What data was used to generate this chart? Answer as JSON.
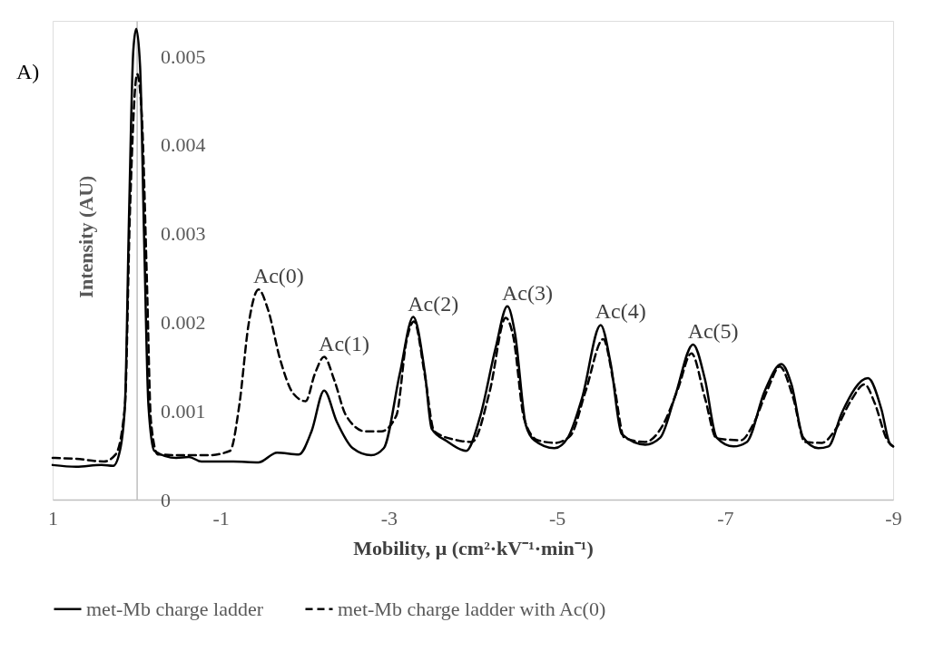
{
  "chart_data": {
    "type": "line",
    "xlabel": "Mobility, μ (cm²·kV⁻¹·min⁻¹)",
    "ylabel": "Intensity (AU)",
    "xlim": [
      1,
      -9
    ],
    "xticks": [
      1,
      -1,
      -3,
      -5,
      -7,
      -9
    ],
    "ylim": [
      0,
      0.0054
    ],
    "yticks": [
      0,
      0.001,
      0.002,
      0.003,
      0.004,
      0.005
    ],
    "grid": false,
    "legend": "bottom",
    "marker": "none",
    "annotations": [
      "A)",
      {
        "text": "Ac(0)",
        "x": -1.45,
        "y": 0.00237
      },
      {
        "text": "Ac(1)",
        "x": -2.23,
        "y": 0.00161
      },
      {
        "text": "Ac(2)",
        "x": -3.29,
        "y": 0.00206
      },
      {
        "text": "Ac(3)",
        "x": -4.41,
        "y": 0.00218
      },
      {
        "text": "Ac(4)",
        "x": -5.52,
        "y": 0.00197
      },
      {
        "text": "Ac(5)",
        "x": -6.62,
        "y": 0.00175
      }
    ],
    "series": [
      {
        "name": "met-Mb charge ladder",
        "color": "#000000",
        "line_style": "solid",
        "x": [
          1.0,
          0.72,
          0.42,
          0.28,
          0.2,
          0.14,
          0.09,
          0.04,
          0.005,
          -0.04,
          -0.09,
          -0.14,
          -0.21,
          -0.47,
          -0.62,
          -0.77,
          -1.15,
          -1.45,
          -1.67,
          -1.93,
          -2.08,
          -2.23,
          -2.38,
          -2.57,
          -2.79,
          -2.94,
          -3.13,
          -3.29,
          -3.43,
          -3.51,
          -3.69,
          -3.92,
          -4.09,
          -4.27,
          -4.41,
          -4.5,
          -4.63,
          -4.73,
          -4.97,
          -5.13,
          -5.3,
          -5.52,
          -5.64,
          -5.77,
          -6.05,
          -6.23,
          -6.4,
          -6.62,
          -6.76,
          -6.9,
          -7.1,
          -7.26,
          -7.47,
          -7.67,
          -7.79,
          -7.93,
          -8.11,
          -8.23,
          -8.39,
          -8.7,
          -8.86,
          -8.96,
          -9.0
        ],
        "values": [
          0.00039,
          0.00037,
          0.00039,
          0.00038,
          0.00055,
          0.00106,
          0.00325,
          0.00507,
          0.00531,
          0.00489,
          0.00288,
          0.00106,
          0.00055,
          0.00047,
          0.00048,
          0.00043,
          0.00043,
          0.00042,
          0.00053,
          0.00051,
          0.00077,
          0.00123,
          0.00088,
          0.00058,
          0.0005,
          0.00058,
          0.00142,
          0.00206,
          0.00142,
          0.0008,
          0.00066,
          0.00055,
          0.00095,
          0.00171,
          0.00218,
          0.00188,
          0.00084,
          0.00067,
          0.00058,
          0.0007,
          0.00115,
          0.00197,
          0.00153,
          0.00074,
          0.00062,
          0.0007,
          0.00115,
          0.00175,
          0.00136,
          0.0007,
          0.0006,
          0.00065,
          0.00122,
          0.00153,
          0.0013,
          0.0007,
          0.00058,
          0.0006,
          0.00098,
          0.00137,
          0.00102,
          0.00063,
          0.0006
        ]
      },
      {
        "name": "met-Mb charge ladder with Ac(0)",
        "color": "#000000",
        "line_style": "dashed",
        "x": [
          1.0,
          0.72,
          0.39,
          0.25,
          0.14,
          0.08,
          -0.005,
          -0.06,
          -0.12,
          -0.17,
          -0.25,
          -0.55,
          -0.85,
          -1.11,
          -1.22,
          -1.33,
          -1.45,
          -1.56,
          -1.71,
          -1.86,
          -2.01,
          -2.12,
          -2.23,
          -2.35,
          -2.49,
          -2.72,
          -2.91,
          -3.09,
          -3.21,
          -3.3,
          -3.43,
          -3.54,
          -3.81,
          -3.99,
          -4.2,
          -4.39,
          -4.48,
          -4.61,
          -4.77,
          -4.98,
          -5.16,
          -5.34,
          -5.55,
          -5.68,
          -5.8,
          -6.05,
          -6.26,
          -6.44,
          -6.6,
          -6.76,
          -6.9,
          -7.19,
          -7.33,
          -7.51,
          -7.65,
          -7.81,
          -7.95,
          -8.15,
          -8.32,
          -8.5,
          -8.66,
          -8.78,
          -8.93,
          -9.0
        ],
        "values": [
          0.00047,
          0.00046,
          0.00043,
          0.00051,
          0.00106,
          0.00325,
          0.0048,
          0.00435,
          0.00252,
          0.00088,
          0.00051,
          0.0005,
          0.0005,
          0.00055,
          0.00106,
          0.00197,
          0.00237,
          0.00215,
          0.00157,
          0.0012,
          0.00111,
          0.00142,
          0.00161,
          0.00135,
          0.00095,
          0.00077,
          0.00077,
          0.00095,
          0.00179,
          0.00201,
          0.00139,
          0.00077,
          0.00067,
          0.00065,
          0.00122,
          0.00205,
          0.00184,
          0.00091,
          0.00067,
          0.00064,
          0.00072,
          0.00122,
          0.00181,
          0.00129,
          0.0007,
          0.00065,
          0.00084,
          0.00125,
          0.00165,
          0.00115,
          0.00069,
          0.00067,
          0.00084,
          0.00125,
          0.0015,
          0.00115,
          0.00065,
          0.00064,
          0.0008,
          0.00112,
          0.0013,
          0.00109,
          0.00067,
          0.0006
        ]
      }
    ]
  }
}
